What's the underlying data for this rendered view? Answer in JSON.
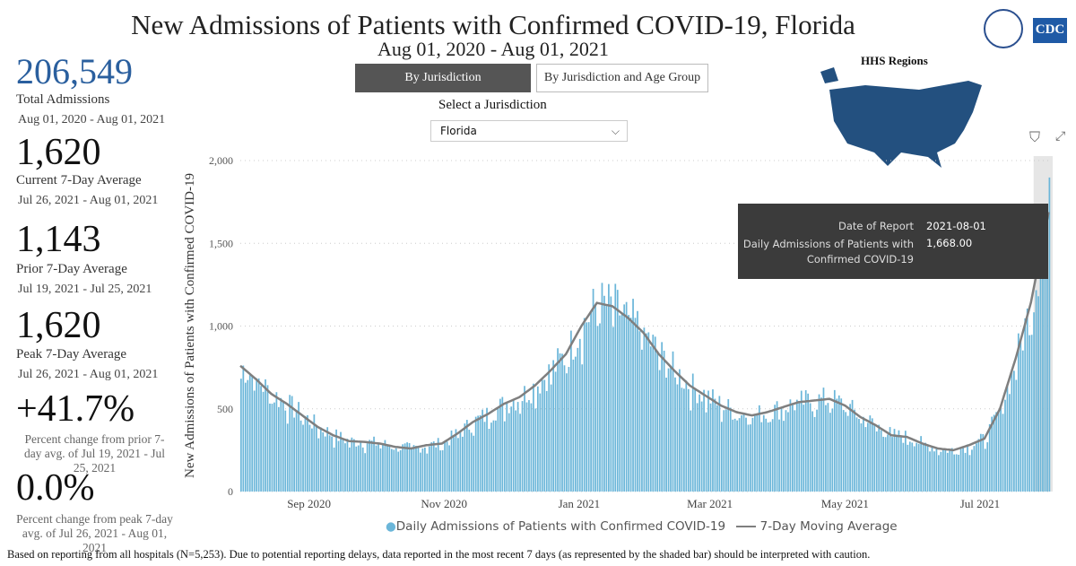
{
  "header": {
    "title": "New Admissions of Patients with Confirmed COVID-19, Florida",
    "subtitle": "Aug 01, 2020 - Aug 01, 2021",
    "logo_hhs": "HHS seal",
    "logo_cdc": "CDC"
  },
  "stats": {
    "total": "206,549",
    "total_label": "Total Admissions",
    "total_range": "Aug 01, 2020 - Aug 01, 2021",
    "current": "1,620",
    "current_label": "Current 7-Day Average",
    "current_range": "Jul 26, 2021 - Aug 01, 2021",
    "prior": "1,143",
    "prior_label": "Prior 7-Day Average",
    "prior_range": "Jul 19, 2021 - Jul 25, 2021",
    "peak": "1,620",
    "peak_label": "Peak 7-Day Average",
    "peak_range": "Jul 26, 2021 - Aug 01, 2021",
    "pct_prior": "+41.7%",
    "pct_prior_note": "Percent change from prior 7-day avg. of Jul 19, 2021 - Jul 25, 2021",
    "pct_peak": "0.0%",
    "pct_peak_note": "Percent change from peak 7-day avg. of Jul 26, 2021 - Aug 01, 2021"
  },
  "controls": {
    "tab1": "By Jurisdiction",
    "tab2": "By Jurisdiction and Age Group",
    "select_label": "Select a Jurisdiction",
    "select_value": "Florida"
  },
  "map": {
    "title": "HHS Regions"
  },
  "tooltip": {
    "k1": "Date of Report",
    "v1": "2021-08-01",
    "k2": "Daily Admissions of Patients with Confirmed COVID-19",
    "v2": "1,668.00"
  },
  "footer": "Based on reporting from all hospitals (N=5,253). Due to potential reporting delays, data reported in the most recent 7 days (as represented by the shaded bar) should be interpreted with caution.",
  "chart_data": {
    "type": "bar",
    "ylabel": "New Admissions of Patients with Confirmed COVID-19",
    "ylim": [
      0,
      2000
    ],
    "yticks": [
      {
        "v": 0,
        "t": "0"
      },
      {
        "v": 500,
        "t": "500"
      },
      {
        "v": 1000,
        "t": "1,000"
      },
      {
        "v": 1500,
        "t": "1,500"
      },
      {
        "v": 2000,
        "t": "2,000"
      }
    ],
    "xticks": [
      {
        "day": 31,
        "t": "Sep 2020"
      },
      {
        "day": 92,
        "t": "Nov 2020"
      },
      {
        "day": 153,
        "t": "Jan 2021"
      },
      {
        "day": 212,
        "t": "Mar 2021"
      },
      {
        "day": 273,
        "t": "May 2021"
      },
      {
        "day": 334,
        "t": "Jul 2021"
      }
    ],
    "start": "2020-08-01",
    "days": 366,
    "weekly_7day_average": [
      760,
      680,
      590,
      530,
      460,
      390,
      340,
      305,
      300,
      290,
      270,
      260,
      280,
      290,
      350,
      420,
      470,
      530,
      570,
      640,
      730,
      830,
      1000,
      1140,
      1120,
      1050,
      960,
      830,
      730,
      640,
      580,
      520,
      480,
      460,
      480,
      510,
      540,
      550,
      560,
      520,
      450,
      400,
      340,
      330,
      290,
      260,
      250,
      280,
      320,
      500,
      800,
      1143,
      1620
    ],
    "colors": {
      "bars": "#6bb6d9",
      "ma": "#7f7f7f"
    },
    "legend": [
      "Daily Admissions of Patients with Confirmed COVID-19",
      "7-Day Moving Average"
    ],
    "shaded_recent_days": 7
  }
}
